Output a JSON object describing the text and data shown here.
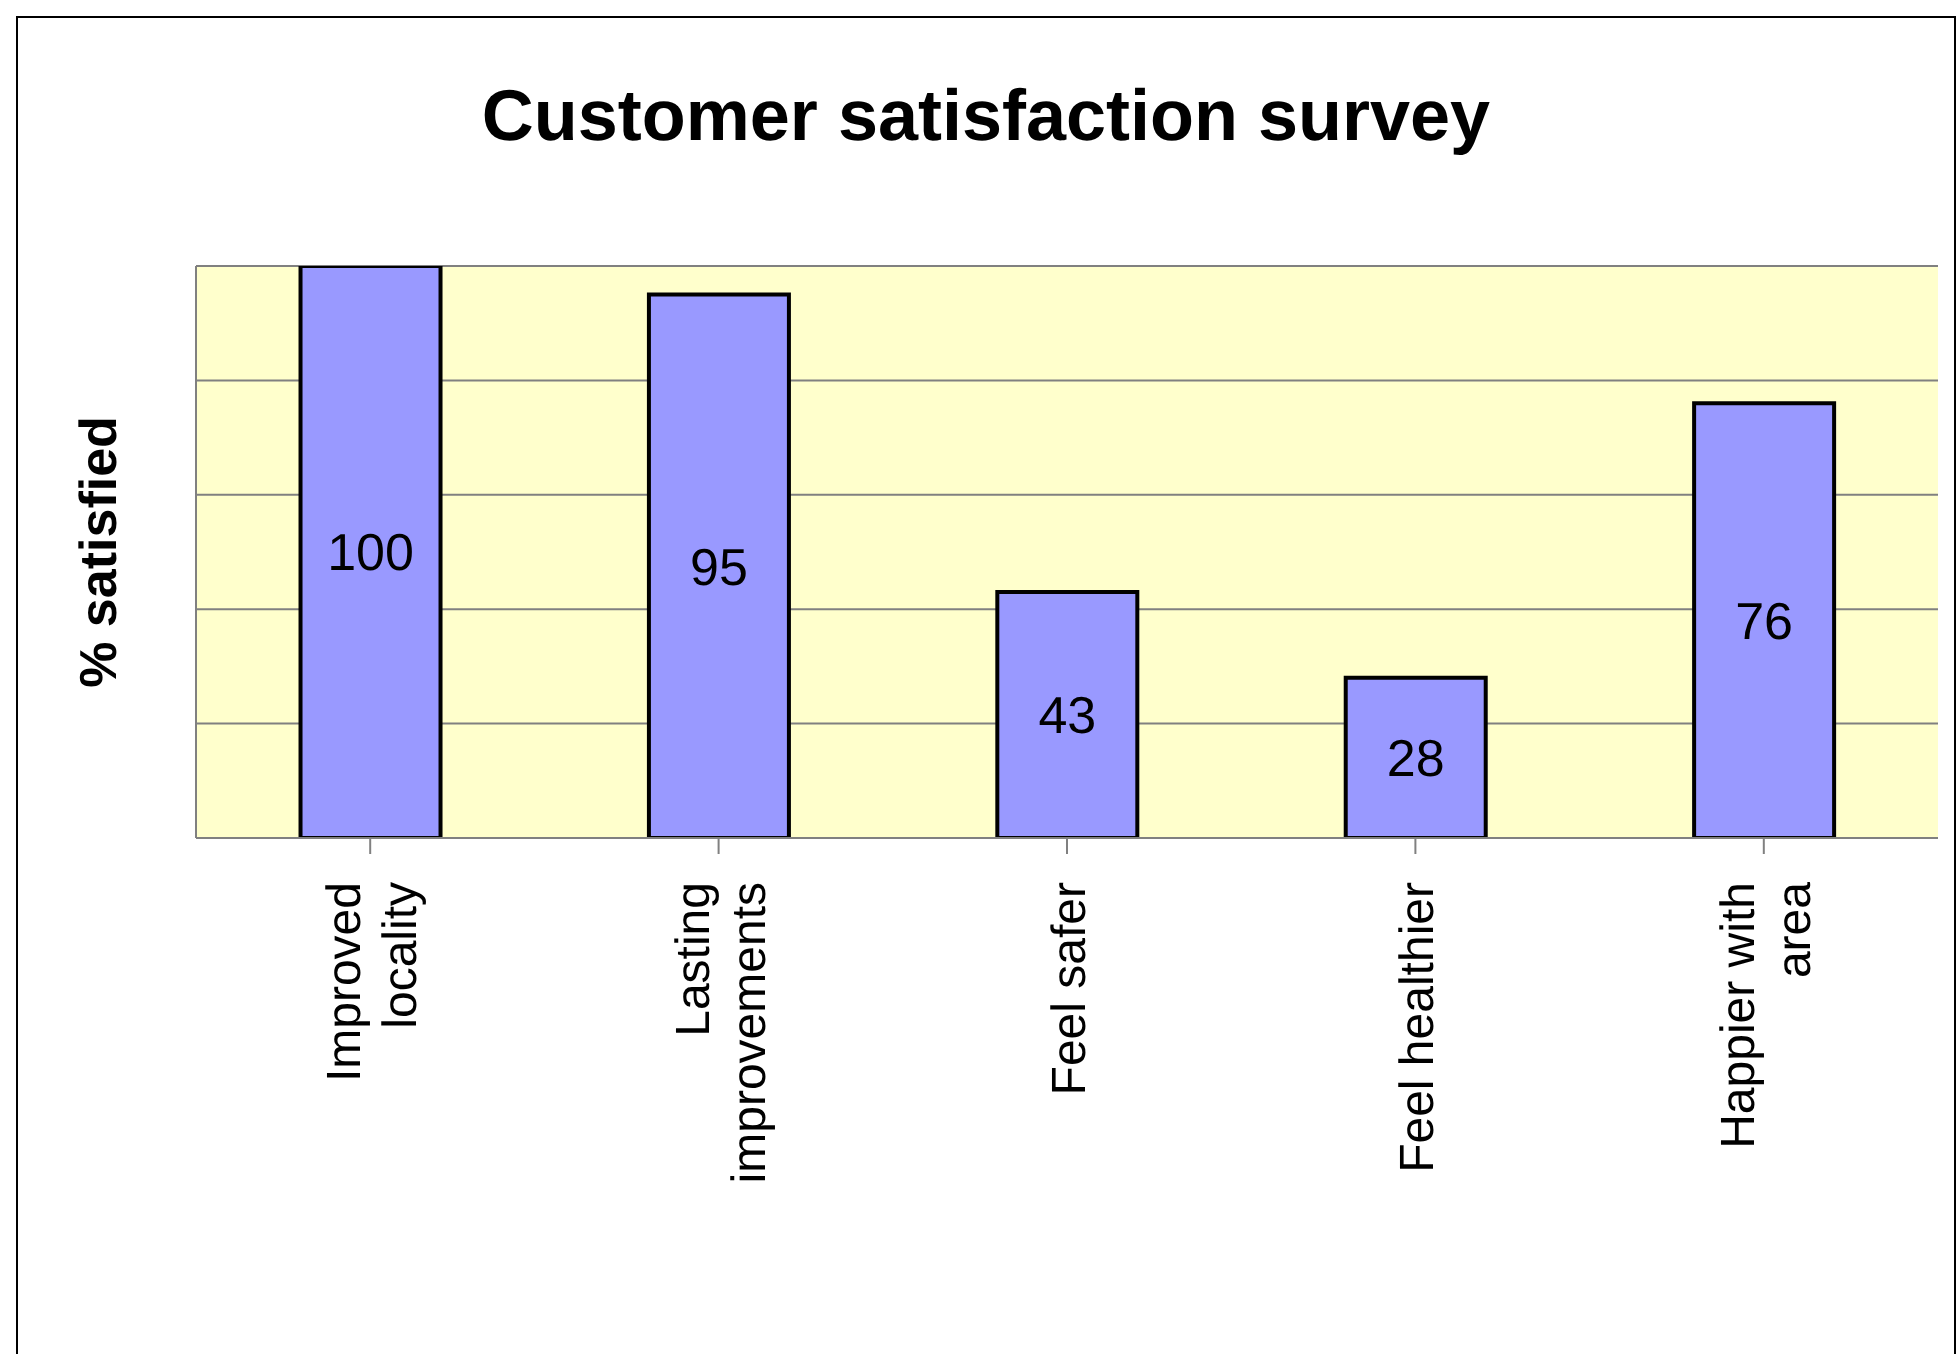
{
  "chart_data": {
    "type": "bar",
    "title": "Customer satisfaction survey",
    "ylabel": "% satisfied",
    "categories": [
      "Improved locality",
      "Lasting improvements",
      "Feel safer",
      "Feel healthier",
      "Happier with area"
    ],
    "values": [
      100,
      95,
      43,
      28,
      76
    ],
    "color": "#9999ff",
    "ylim": [
      0,
      100
    ],
    "yticks": [
      {
        "value": 0,
        "label": null
      },
      {
        "value": 20,
        "label": null
      },
      {
        "value": 40,
        "label": null
      },
      {
        "value": 60,
        "label": null
      },
      {
        "value": 80,
        "label": null
      },
      {
        "value": 100,
        "label": null
      }
    ],
    "grid": "y",
    "data_labels": true
  }
}
